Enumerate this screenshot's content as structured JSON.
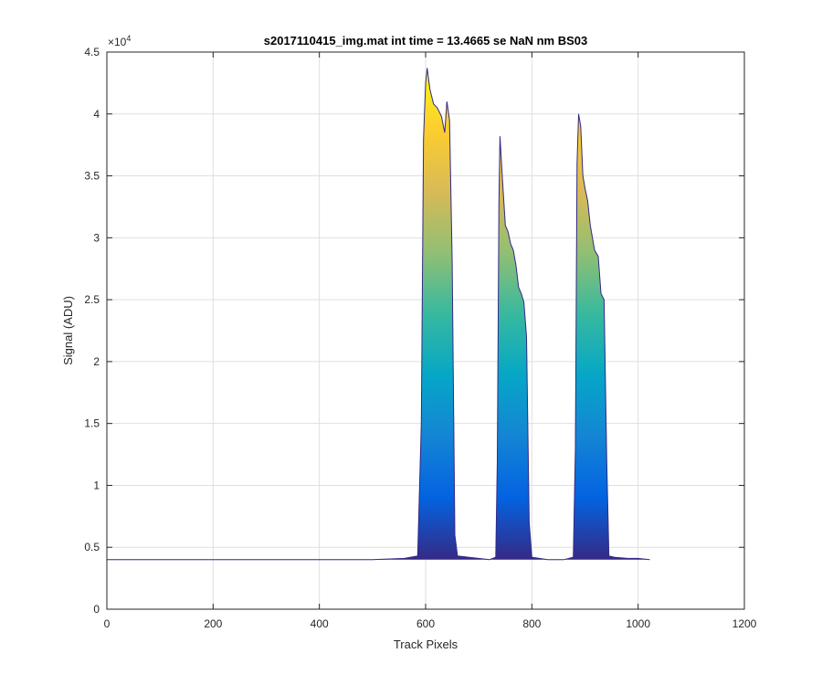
{
  "chart_data": {
    "type": "area",
    "title": "s2017110415_img.mat int time = 13.4665 se  NaN nm BS03",
    "xlabel": "Track Pixels",
    "ylabel": "Signal (ADU)",
    "y_exponent_label": "×10",
    "y_exponent_power": "4",
    "xlim": [
      0,
      1200
    ],
    "ylim": [
      0,
      4.5
    ],
    "x_ticks": [
      0,
      200,
      400,
      600,
      800,
      1000,
      1200
    ],
    "x_tick_labels": [
      "0",
      "200",
      "400",
      "600",
      "800",
      "1000",
      "1200"
    ],
    "y_ticks": [
      0,
      0.5,
      1,
      1.5,
      2,
      2.5,
      3,
      3.5,
      4,
      4.5
    ],
    "y_tick_labels": [
      "0",
      "0.5",
      "1",
      "1.5",
      "2",
      "2.5",
      "3",
      "3.5",
      "4",
      "4.5"
    ],
    "grid": true,
    "colormap": [
      "#352a87",
      "#0363e1",
      "#1485d4",
      "#06a7c6",
      "#38b99e",
      "#92bf73",
      "#d9ba56",
      "#fcce2e",
      "#f9fb0e"
    ],
    "series": [
      {
        "values_unit": "x1e4 ADU",
        "x": [
          0,
          300,
          500,
          560,
          585,
          592,
          596,
          600,
          603,
          608,
          615,
          622,
          630,
          636,
          640,
          645,
          650,
          655,
          660,
          680,
          700,
          720,
          732,
          735,
          738,
          740,
          745,
          750,
          755,
          760,
          765,
          770,
          775,
          780,
          785,
          790,
          795,
          800,
          830,
          860,
          878,
          882,
          885,
          888,
          892,
          896,
          900,
          905,
          910,
          918,
          925,
          930,
          936,
          941,
          945,
          955,
          980,
          1000,
          1022
        ],
        "values": [
          0.4,
          0.4,
          0.4,
          0.41,
          0.43,
          1.5,
          3.8,
          4.25,
          4.37,
          4.2,
          4.08,
          4.05,
          3.98,
          3.85,
          4.1,
          3.95,
          2.8,
          0.6,
          0.43,
          0.42,
          0.41,
          0.4,
          0.42,
          1.2,
          3.3,
          3.82,
          3.45,
          3.1,
          3.05,
          2.95,
          2.9,
          2.78,
          2.6,
          2.55,
          2.48,
          2.2,
          0.7,
          0.42,
          0.4,
          0.4,
          0.42,
          1.3,
          3.6,
          4.0,
          3.9,
          3.5,
          3.4,
          3.3,
          3.1,
          2.9,
          2.85,
          2.55,
          2.5,
          1.2,
          0.43,
          0.42,
          0.41,
          0.41,
          0.4
        ]
      }
    ]
  }
}
